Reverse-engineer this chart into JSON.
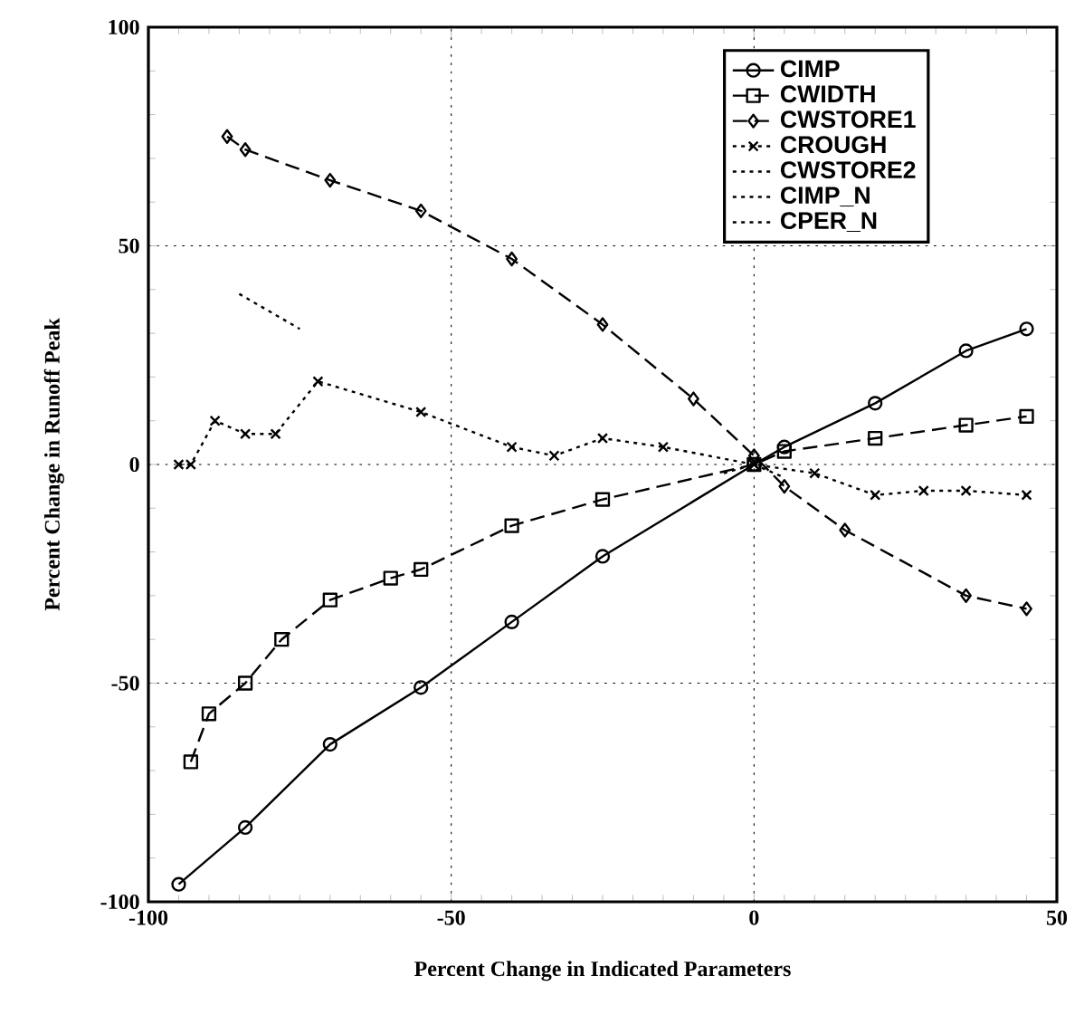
{
  "chart_data": {
    "type": "line",
    "xlabel": "Percent Change in Indicated Parameters",
    "ylabel": "Percent Change in Runoff Peak",
    "xlim": [
      -100,
      50
    ],
    "xticks": [
      -100,
      -50,
      0,
      50
    ],
    "ylim": [
      -100,
      100
    ],
    "yticks": [
      -100,
      -50,
      0,
      50,
      100
    ],
    "grid": true,
    "legend": "top right",
    "series": [
      {
        "name": "CIMP",
        "color": "#000000",
        "marker": "circle",
        "line_style": "solid",
        "x": [
          -95,
          -84,
          -70,
          -55,
          -40,
          -25,
          0,
          5,
          20,
          35,
          45
        ],
        "values": [
          -96,
          -83,
          -64,
          -51,
          -36,
          -21,
          0,
          4,
          14,
          26,
          31
        ]
      },
      {
        "name": "CWIDTH",
        "color": "#000000",
        "marker": "square",
        "line_style": "dashed",
        "x": [
          -93,
          -90,
          -84,
          -78,
          -70,
          -60,
          -55,
          -40,
          -25,
          0,
          5,
          20,
          35,
          45
        ],
        "values": [
          -68,
          -57,
          -50,
          -40,
          -31,
          -26,
          -24,
          -14,
          -8,
          0,
          3,
          6,
          9,
          11
        ]
      },
      {
        "name": "CWSTORE1",
        "color": "#000000",
        "marker": "diamond",
        "line_style": "dashed",
        "x": [
          -87,
          -84,
          -70,
          -55,
          -40,
          -25,
          -10,
          0,
          5,
          15,
          35,
          45
        ],
        "values": [
          75,
          72,
          65,
          58,
          47,
          32,
          15,
          2,
          -5,
          -15,
          -30,
          -33
        ]
      },
      {
        "name": "CROUGH",
        "color": "#000000",
        "marker": "cross",
        "line_style": "dotted",
        "x": [
          -95,
          -93,
          -89,
          -84,
          -79,
          -72,
          -55,
          -40,
          -33,
          -25,
          -15,
          0,
          10,
          20,
          28,
          35,
          45
        ],
        "values": [
          0,
          0,
          10,
          7,
          7,
          19,
          12,
          4,
          2,
          6,
          4,
          0,
          -2,
          -7,
          -6,
          -6,
          -7
        ]
      },
      {
        "name": "CWSTORE2",
        "color": "#000000",
        "marker": "none",
        "line_style": "dotted",
        "x": [
          -85,
          -75
        ],
        "values": [
          39,
          31
        ]
      },
      {
        "name": "CIMP_N",
        "color": "#000000",
        "marker": "none",
        "line_style": "dotted",
        "x": [
          0,
          5
        ],
        "values": [
          0,
          -3
        ]
      },
      {
        "name": "CPER_N",
        "color": "#000000",
        "marker": "none",
        "line_style": "dotted",
        "x": [
          -5,
          0
        ],
        "values": [
          -2,
          0
        ]
      }
    ]
  }
}
